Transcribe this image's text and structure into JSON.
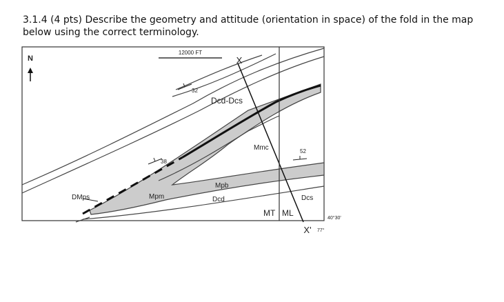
{
  "question": {
    "text": "3.1.4 (4 pts) Describe the geometry and attitude (orientation in space) of the fold in the map below using the correct terminology."
  },
  "map": {
    "north": "N",
    "scale": "12000 FT",
    "section": [
      "X",
      "X'"
    ],
    "dips": [
      "32",
      "38",
      "52"
    ],
    "units": [
      "Dcd-Dcs",
      "Mmc",
      "Mpb",
      "Dcd",
      "Mpm",
      "DMps",
      "Dcs"
    ],
    "zones": [
      "MT",
      "ML"
    ],
    "coordinates": [
      "40°30'",
      "77°"
    ]
  }
}
